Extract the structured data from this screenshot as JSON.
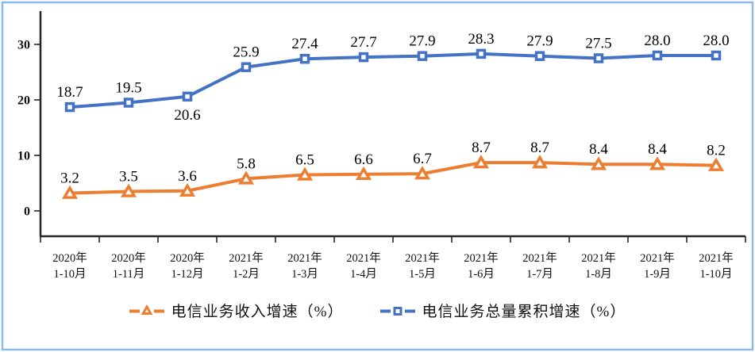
{
  "chart_data": {
    "type": "line",
    "title": "",
    "xlabel": "",
    "ylabel": "",
    "categories": [
      "2020年\n1-10月",
      "2020年\n1-11月",
      "2020年\n1-12月",
      "2021年\n1-2月",
      "2021年\n1-3月",
      "2021年\n1-4月",
      "2021年\n1-5月",
      "2021年\n1-6月",
      "2021年\n1-7月",
      "2021年\n1-8月",
      "2021年\n1-9月",
      "2021年\n1-10月"
    ],
    "series": [
      {
        "name": "电信业务收入增速（%）",
        "color": "#ED7D31",
        "marker": "triangle",
        "values": [
          3.2,
          3.5,
          3.6,
          5.8,
          6.5,
          6.6,
          6.7,
          8.7,
          8.7,
          8.4,
          8.4,
          8.2
        ],
        "label_side": [
          "above",
          "above",
          "above",
          "above",
          "above",
          "above",
          "above",
          "above",
          "above",
          "above",
          "above",
          "above"
        ]
      },
      {
        "name": "电信业务总量累积增速（%）",
        "color": "#4472C4",
        "marker": "square",
        "values": [
          18.7,
          19.5,
          20.6,
          25.9,
          27.4,
          27.7,
          27.9,
          28.3,
          27.9,
          27.5,
          28.0,
          28.0
        ],
        "label_side": [
          "above",
          "above",
          "below",
          "above",
          "above",
          "above",
          "above",
          "above",
          "above",
          "above",
          "above",
          "above"
        ]
      }
    ],
    "yticks": [
      0,
      10,
      20,
      30
    ],
    "ylim": [
      -4.6,
      36
    ],
    "grid": false,
    "legend_position": "bottom",
    "border_color": "#8DB9E8",
    "axis_color": "#262626",
    "label_color": "#000000"
  }
}
